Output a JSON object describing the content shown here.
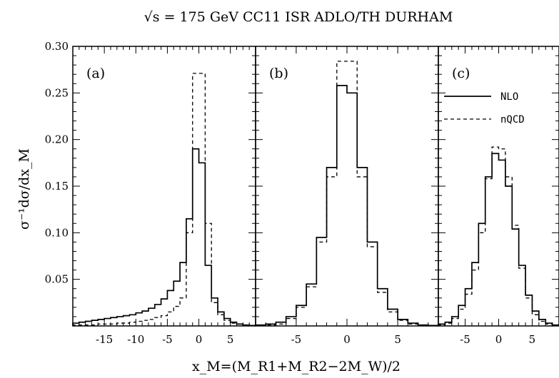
{
  "chart_data": {
    "type": "line",
    "title": "√s = 175 GeV  CC11 ISR ADLO/TH DURHAM",
    "xlabel": "x_M=(M_R1+M_R2−2M_W)/2",
    "ylabel": "σ⁻¹dσ/dx_M",
    "ylim": [
      0,
      0.3
    ],
    "yticks": [
      "0.05",
      "0.10",
      "0.15",
      "0.20",
      "0.25",
      "0.30"
    ],
    "legend": {
      "placement": "top-right",
      "entries": [
        "NLO",
        "nQCD"
      ]
    },
    "series_styles": [
      {
        "name": "NLO",
        "style": "solid"
      },
      {
        "name": "nQCD",
        "style": "dashed"
      }
    ],
    "panels": [
      {
        "label": "(a)",
        "xlim": [
          -20,
          9
        ],
        "xticks": [
          "-15",
          "-10",
          "-5",
          "0",
          "5"
        ],
        "edges": [
          -20,
          -19,
          -18,
          -17,
          -16,
          -15,
          -14,
          -13,
          -12,
          -11,
          -10,
          -9,
          -8,
          -7,
          -6,
          -5,
          -4,
          -3,
          -2,
          -1,
          0,
          1,
          2,
          3,
          4,
          5,
          6,
          7,
          8,
          9
        ],
        "series": [
          {
            "name": "NLO",
            "values": [
              0.003,
              0.004,
              0.005,
              0.006,
              0.007,
              0.008,
              0.009,
              0.01,
              0.011,
              0.012,
              0.014,
              0.016,
              0.019,
              0.023,
              0.029,
              0.038,
              0.048,
              0.068,
              0.115,
              0.19,
              0.175,
              0.065,
              0.03,
              0.015,
              0.008,
              0.004,
              0.002,
              0.001,
              0.0005
            ]
          },
          {
            "name": "nQCD",
            "values": [
              0.001,
              0.001,
              0.001,
              0.001,
              0.002,
              0.002,
              0.002,
              0.003,
              0.003,
              0.004,
              0.005,
              0.006,
              0.007,
              0.009,
              0.011,
              0.015,
              0.021,
              0.03,
              0.1,
              0.271,
              0.271,
              0.11,
              0.025,
              0.012,
              0.006,
              0.003,
              0.002,
              0.001,
              0.0005
            ]
          }
        ]
      },
      {
        "label": "(b)",
        "xlim": [
          -9,
          9
        ],
        "xticks": [
          "-5",
          "0",
          "5"
        ],
        "edges": [
          -9,
          -8,
          -7,
          -6,
          -5,
          -4,
          -3,
          -2,
          -1,
          0,
          1,
          2,
          3,
          4,
          5,
          6,
          7,
          8,
          9
        ],
        "series": [
          {
            "name": "NLO",
            "values": [
              0.001,
              0.002,
              0.004,
              0.01,
              0.022,
              0.045,
              0.095,
              0.17,
              0.258,
              0.25,
              0.17,
              0.09,
              0.04,
              0.018,
              0.007,
              0.003,
              0.001,
              0.0005
            ]
          },
          {
            "name": "nQCD",
            "values": [
              0.0005,
              0.001,
              0.002,
              0.008,
              0.02,
              0.042,
              0.09,
              0.16,
              0.284,
              0.284,
              0.16,
              0.085,
              0.036,
              0.015,
              0.006,
              0.002,
              0.001,
              0.0005
            ]
          }
        ]
      },
      {
        "label": "(c)",
        "xlim": [
          -9,
          9
        ],
        "xticks": [
          "-5",
          "0",
          "5"
        ],
        "edges": [
          -9,
          -8,
          -7,
          -6,
          -5,
          -4,
          -3,
          -2,
          -1,
          0,
          1,
          2,
          3,
          4,
          5,
          6,
          7,
          8,
          9
        ],
        "series": [
          {
            "name": "NLO",
            "values": [
              0.002,
              0.004,
              0.01,
              0.022,
              0.04,
              0.068,
              0.11,
              0.16,
              0.185,
              0.178,
              0.15,
              0.104,
              0.065,
              0.033,
              0.016,
              0.007,
              0.003,
              0.001
            ]
          },
          {
            "name": "nQCD",
            "values": [
              0.001,
              0.003,
              0.008,
              0.018,
              0.034,
              0.06,
              0.1,
              0.158,
              0.192,
              0.19,
              0.16,
              0.108,
              0.062,
              0.03,
              0.012,
              0.005,
              0.002,
              0.001
            ]
          }
        ]
      }
    ]
  }
}
